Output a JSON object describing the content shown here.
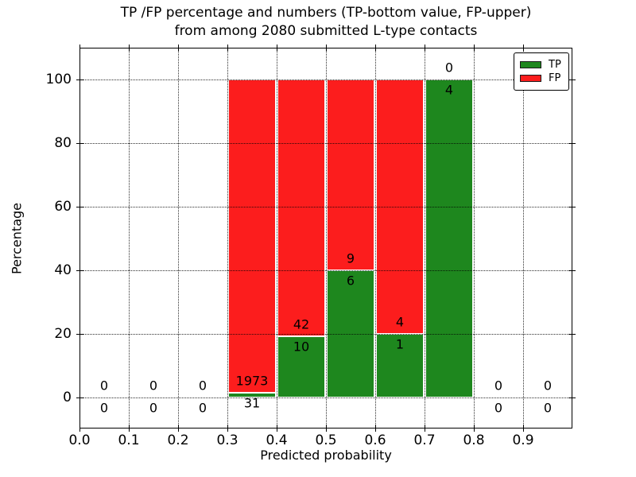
{
  "chart_data": {
    "type": "bar",
    "stacked": true,
    "title_line1": "TP /FP percentage and numbers (TP-bottom value, FP-upper)",
    "title_line2": "from among 2080 submitted L-type contacts",
    "xlabel": "Predicted probability",
    "ylabel": "Percentage",
    "total_submitted": 2080,
    "xlim": [
      0.0,
      1.0
    ],
    "ylim": [
      -9.75,
      110
    ],
    "x_tick_values": [
      0.0,
      0.1,
      0.2,
      0.3,
      0.4,
      0.5,
      0.6,
      0.7,
      0.8,
      0.9
    ],
    "x_tick_labels": [
      "0.0",
      "0.1",
      "0.2",
      "0.3",
      "0.4",
      "0.5",
      "0.6",
      "0.7",
      "0.8",
      "0.9"
    ],
    "y_tick_values": [
      0,
      20,
      40,
      60,
      80,
      100
    ],
    "y_tick_labels": [
      "0",
      "20",
      "40",
      "60",
      "80",
      "100"
    ],
    "grid": true,
    "grid_style": "dotted",
    "bin_width": 0.1,
    "bin_left_edges": [
      0.0,
      0.1,
      0.2,
      0.3,
      0.4,
      0.5,
      0.6,
      0.7,
      0.8,
      0.9
    ],
    "series": [
      {
        "name": "TP",
        "color": "#1e871e",
        "counts": [
          0,
          0,
          0,
          31,
          10,
          6,
          1,
          4,
          0,
          0
        ],
        "percentages": [
          0,
          0,
          0,
          1.55,
          19.23,
          40.0,
          20.0,
          100.0,
          0,
          0
        ]
      },
      {
        "name": "FP",
        "color": "#fc1d1d",
        "counts": [
          0,
          0,
          0,
          1973,
          42,
          9,
          4,
          0,
          0,
          0
        ],
        "percentages": [
          0,
          0,
          0,
          98.45,
          80.77,
          60.0,
          80.0,
          0,
          0,
          0
        ]
      }
    ],
    "legend": {
      "position": "upper right",
      "entries": [
        {
          "label": "TP",
          "color": "#1e871e"
        },
        {
          "label": "FP",
          "color": "#fc1d1d"
        }
      ]
    }
  },
  "colors": {
    "tp_green": "#1e871e",
    "fp_red": "#fc1d1d",
    "axis": "#000000",
    "grid": "#000000",
    "background": "#ffffff",
    "text": "#000000"
  }
}
